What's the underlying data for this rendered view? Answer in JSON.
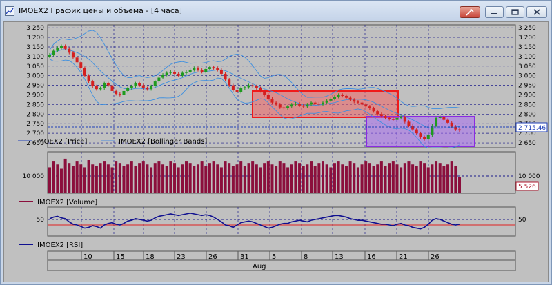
{
  "window": {
    "title": "IMOEX2 График цены и объёма - [4 часа]",
    "buttons": [
      "pin",
      "minimize",
      "maximize",
      "close"
    ]
  },
  "price_panel": {
    "y_ticks": [
      "3 250",
      "3 200",
      "3 150",
      "3 100",
      "3 050",
      "3 000",
      "2 950",
      "2 900",
      "2 850",
      "2 800",
      "2 750",
      "2 700",
      "2 650"
    ],
    "y_values": [
      3250,
      3200,
      3150,
      3100,
      3050,
      3000,
      2950,
      2900,
      2850,
      2800,
      2750,
      2700,
      2650
    ],
    "y_range": [
      2625,
      3265
    ],
    "last_price_label": "2 715,46",
    "legend": [
      {
        "label": "IMOEX2 [Price]",
        "color": "#1f3fb8"
      },
      {
        "label": "IMOEX2 [Bollinger Bands]",
        "color": "#4a8de0"
      }
    ],
    "colors": {
      "up": "#1f9a1f",
      "down": "#d42020",
      "band": "#3d8fe0"
    }
  },
  "volume_panel": {
    "y_tick": "10 000",
    "last_value_label": "5 526",
    "legend": {
      "label": "IMOEX2 [Volume]",
      "color": "#8b0f3c"
    }
  },
  "rsi_panel": {
    "y_tick": "50",
    "legend": {
      "label": "IMOEX2 [RSI]",
      "color": "#101090"
    }
  },
  "x_axis": {
    "day_labels": [
      "10",
      "15",
      "18",
      "23",
      "26",
      "31",
      "5",
      "8",
      "13",
      "16",
      "21",
      "26"
    ],
    "month_label": "Aug"
  },
  "highlights": [
    {
      "name": "red-zone",
      "color": "#f03a3a"
    },
    {
      "name": "purple-zone",
      "color": "#9a4ff0"
    }
  ],
  "chart_data": {
    "type": "candlestick",
    "x_axis": "date",
    "y_axis": "price",
    "price_close": [
      3110,
      3130,
      3145,
      3155,
      3140,
      3120,
      3095,
      3070,
      3040,
      3000,
      2970,
      2945,
      2930,
      2935,
      2960,
      2950,
      2920,
      2905,
      2900,
      2920,
      2935,
      2945,
      2960,
      2950,
      2935,
      2930,
      2945,
      2970,
      2990,
      3005,
      3015,
      3020,
      3010,
      3000,
      3015,
      3020,
      3030,
      3040,
      3030,
      3020,
      3035,
      3045,
      3040,
      3030,
      3010,
      2980,
      2950,
      2925,
      2915,
      2935,
      2940,
      2950,
      2945,
      2935,
      2920,
      2900,
      2880,
      2860,
      2850,
      2835,
      2830,
      2840,
      2850,
      2855,
      2845,
      2840,
      2850,
      2860,
      2855,
      2850,
      2860,
      2870,
      2880,
      2890,
      2900,
      2895,
      2885,
      2875,
      2865,
      2860,
      2850,
      2840,
      2830,
      2815,
      2800,
      2790,
      2780,
      2775,
      2770,
      2780,
      2785,
      2760,
      2740,
      2720,
      2700,
      2680,
      2670,
      2690,
      2740,
      2780,
      2785,
      2770,
      2755,
      2735,
      2720,
      2715
    ],
    "volume": [
      9000,
      11000,
      10000,
      8500,
      12000,
      10500,
      9500,
      11000,
      10000,
      9000,
      11500,
      10000,
      9500,
      10500,
      11000,
      10000,
      9000,
      11000,
      10500,
      9500,
      10000,
      11000,
      9500,
      10500,
      11000,
      10000,
      9000,
      10500,
      11000,
      10000,
      9500,
      11000,
      10500,
      9000,
      10000,
      11000,
      10500,
      9500,
      10000,
      11000,
      9500,
      10500,
      11000,
      10000,
      9000,
      11000,
      10500,
      9500,
      10000,
      11000,
      9500,
      10500,
      11000,
      10000,
      9000,
      10500,
      11000,
      10000,
      9500,
      11000,
      10500,
      9000,
      10000,
      11000,
      10500,
      9500,
      10000,
      11000,
      9500,
      10500,
      11000,
      10000,
      9000,
      10500,
      11000,
      10000,
      9500,
      11000,
      10500,
      9000,
      10000,
      11000,
      10500,
      9500,
      10000,
      11000,
      9500,
      10500,
      11000,
      10000,
      9000,
      10500,
      11000,
      10000,
      9500,
      11000,
      10500,
      9000,
      10000,
      11000,
      10500,
      9500,
      10000,
      11000,
      9500,
      5526
    ],
    "rsi": [
      52,
      54,
      55,
      53,
      52,
      48,
      45,
      44,
      42,
      40,
      41,
      43,
      42,
      40,
      44,
      46,
      47,
      45,
      44,
      46,
      49,
      50,
      52,
      51,
      50,
      49,
      50,
      53,
      55,
      56,
      57,
      58,
      57,
      56,
      57,
      58,
      59,
      58,
      57,
      56,
      57,
      56,
      54,
      51,
      48,
      44,
      43,
      41,
      44,
      47,
      48,
      49,
      48,
      46,
      44,
      42,
      40,
      41,
      43,
      45,
      46,
      46,
      48,
      49,
      50,
      49,
      48,
      50,
      51,
      52,
      53,
      54,
      55,
      56,
      56,
      55,
      54,
      52,
      51,
      50,
      50,
      49,
      48,
      47,
      46,
      45,
      45,
      44,
      43,
      45,
      46,
      44,
      43,
      41,
      40,
      39,
      41,
      45,
      50,
      52,
      51,
      49,
      47,
      45,
      44,
      45
    ],
    "y_range": [
      2625,
      3265
    ]
  }
}
